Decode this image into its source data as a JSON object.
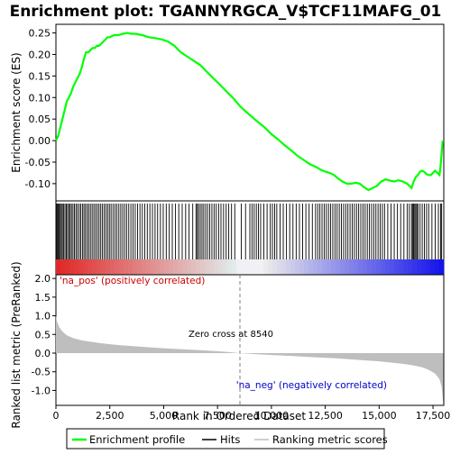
{
  "chart_data": {
    "type": "line",
    "title": "Enrichment plot: TGANNYRGCA_V$TCF11MAFG_01",
    "colors": {
      "enrichment_line": "#00ff00",
      "hits": "#000000",
      "ranking_fill": "#bebebe",
      "pos_label": "#cc0000",
      "neg_label": "#0000cc",
      "zero_line": "#808080"
    },
    "top_panel": {
      "ylabel": "Enrichment score (ES)",
      "ylim": [
        -0.14,
        0.27
      ],
      "yticks": [
        0.25,
        0.2,
        0.15,
        0.1,
        0.05,
        0.0,
        -0.05,
        -0.1
      ],
      "ytick_labels": [
        "0.25",
        "0.20",
        "0.15",
        "0.10",
        "0.05",
        "0.00",
        "-0.05",
        "-0.10"
      ],
      "series": [
        {
          "name": "Enrichment profile",
          "x": [
            0,
            100,
            200,
            300,
            400,
            500,
            600,
            700,
            800,
            900,
            1000,
            1100,
            1200,
            1300,
            1400,
            1500,
            1600,
            1700,
            1800,
            1900,
            2000,
            2100,
            2200,
            2300,
            2400,
            2500,
            2700,
            2900,
            3100,
            3300,
            3500,
            3700,
            4000,
            4300,
            4600,
            4900,
            5200,
            5500,
            5800,
            6100,
            6400,
            6700,
            7000,
            7300,
            7600,
            7900,
            8200,
            8540,
            8800,
            9100,
            9400,
            9700,
            10000,
            10300,
            10600,
            10900,
            11200,
            11500,
            11800,
            12100,
            12300,
            12500,
            12700,
            12900,
            13100,
            13300,
            13500,
            13700,
            13900,
            14100,
            14300,
            14500,
            14700,
            14900,
            15100,
            15300,
            15500,
            15700,
            15900,
            16100,
            16300,
            16500,
            16600,
            16700,
            16800,
            16900,
            17000,
            17100,
            17200,
            17300,
            17400,
            17500,
            17600,
            17700,
            17800,
            17850,
            17900,
            17950
          ],
          "values": [
            0.0,
            0.01,
            0.03,
            0.05,
            0.07,
            0.09,
            0.1,
            0.11,
            0.125,
            0.135,
            0.145,
            0.155,
            0.17,
            0.19,
            0.205,
            0.205,
            0.21,
            0.215,
            0.215,
            0.22,
            0.22,
            0.225,
            0.23,
            0.235,
            0.24,
            0.24,
            0.245,
            0.245,
            0.248,
            0.25,
            0.248,
            0.248,
            0.245,
            0.24,
            0.238,
            0.235,
            0.23,
            0.22,
            0.205,
            0.195,
            0.185,
            0.175,
            0.16,
            0.145,
            0.13,
            0.115,
            0.1,
            0.08,
            0.068,
            0.055,
            0.042,
            0.03,
            0.015,
            0.003,
            -0.01,
            -0.022,
            -0.035,
            -0.045,
            -0.055,
            -0.062,
            -0.068,
            -0.072,
            -0.075,
            -0.08,
            -0.088,
            -0.095,
            -0.1,
            -0.1,
            -0.098,
            -0.1,
            -0.108,
            -0.115,
            -0.11,
            -0.105,
            -0.095,
            -0.09,
            -0.093,
            -0.095,
            -0.092,
            -0.095,
            -0.1,
            -0.11,
            -0.095,
            -0.085,
            -0.08,
            -0.072,
            -0.07,
            -0.073,
            -0.078,
            -0.08,
            -0.08,
            -0.075,
            -0.07,
            -0.075,
            -0.08,
            -0.06,
            -0.03,
            0.0
          ]
        }
      ]
    },
    "hits_panel": {
      "name": "Hits",
      "hit_positions": [
        20,
        60,
        110,
        150,
        200,
        250,
        300,
        360,
        420,
        480,
        540,
        600,
        660,
        720,
        790,
        860,
        930,
        1000,
        1080,
        1150,
        1230,
        1300,
        1370,
        1450,
        1520,
        1600,
        1680,
        1760,
        1840,
        1920,
        2000,
        2080,
        2160,
        2240,
        2320,
        2400,
        2480,
        2560,
        2650,
        2740,
        2830,
        2920,
        3010,
        3100,
        3190,
        3280,
        3380,
        3480,
        3580,
        3680,
        3790,
        3900,
        4010,
        4120,
        4240,
        4360,
        4480,
        4600,
        4720,
        4850,
        4980,
        5120,
        5260,
        5400,
        5550,
        5700,
        5860,
        6020,
        6180,
        6350,
        6500,
        6560,
        6620,
        6700,
        6780,
        6860,
        6950,
        7040,
        7140,
        7240,
        7340,
        7440,
        7550,
        7660,
        7780,
        7900,
        8020,
        8150,
        8300,
        8600,
        8800,
        9000,
        9100,
        9200,
        9300,
        9400,
        9500,
        9650,
        9800,
        9950,
        10050,
        10150,
        10250,
        10400,
        10550,
        10700,
        10850,
        11000,
        11150,
        11300,
        11450,
        11600,
        11750,
        11900,
        12050,
        12150,
        12250,
        12350,
        12450,
        12550,
        12650,
        12750,
        12850,
        12950,
        13050,
        13150,
        13250,
        13350,
        13450,
        13550,
        13650,
        13750,
        13850,
        13950,
        14050,
        14150,
        14250,
        14350,
        14450,
        14550,
        14650,
        14750,
        14850,
        14950,
        15050,
        15150,
        15250,
        15400,
        15550,
        15700,
        15850,
        16000,
        16150,
        16300,
        16400,
        16500,
        16550,
        16600,
        16650,
        16700,
        16750,
        16800,
        16900,
        17000,
        17100,
        17200,
        17300,
        17450,
        17600,
        17750,
        17850,
        17900
      ],
      "color_bar": "red (positive) to blue (negative)"
    },
    "bottom_panel": {
      "ylabel": "Ranked list metric (PreRanked)",
      "xlabel": "Rank in Ordered Dataset",
      "ylim": [
        -1.4,
        2.1
      ],
      "yticks": [
        2.0,
        1.5,
        1.0,
        0.5,
        0.0,
        -0.5,
        -1.0
      ],
      "ytick_labels": [
        "2.0",
        "1.5",
        "1.0",
        "0.5",
        "0.0",
        "-0.5",
        "-1.0"
      ],
      "xlim": [
        0,
        18000
      ],
      "xticks": [
        0,
        2500,
        5000,
        7500,
        10000,
        12500,
        15000,
        17500
      ],
      "xtick_labels": [
        "0",
        "2,500",
        "5,000",
        "7,500",
        "10,000",
        "12,500",
        "15,000",
        "17,500"
      ],
      "metric_x": [
        0,
        50,
        150,
        300,
        500,
        800,
        1200,
        2000,
        3000,
        4000,
        5000,
        6000,
        7000,
        8000,
        8540,
        9000,
        10000,
        11000,
        12000,
        13000,
        14000,
        15000,
        16000,
        16500,
        17000,
        17300,
        17600,
        17800,
        17900,
        17980
      ],
      "metric_values": [
        1.0,
        0.85,
        0.7,
        0.58,
        0.48,
        0.4,
        0.34,
        0.27,
        0.21,
        0.17,
        0.13,
        0.1,
        0.07,
        0.03,
        0.0,
        -0.02,
        -0.05,
        -0.08,
        -0.11,
        -0.14,
        -0.18,
        -0.22,
        -0.28,
        -0.32,
        -0.38,
        -0.45,
        -0.55,
        -0.7,
        -0.9,
        -1.35
      ],
      "zero_cross_label": "Zero cross at 8540",
      "zero_cross": 8540,
      "pos_label": "'na_pos' (positively correlated)",
      "neg_label": "'na_neg' (negatively correlated)"
    },
    "legend": {
      "placement": "bottom",
      "items": [
        "Enrichment profile",
        "Hits",
        "Ranking metric scores"
      ]
    }
  }
}
